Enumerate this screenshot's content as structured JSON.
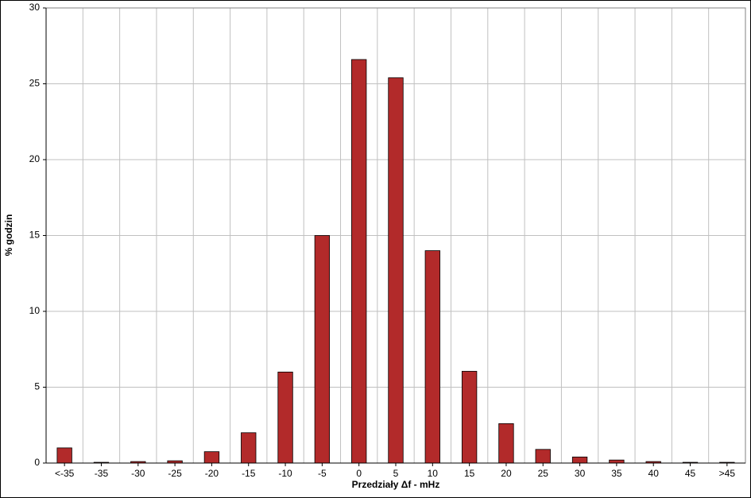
{
  "chart_data": {
    "type": "bar",
    "xlabel": "Przedziały Δf - mHz",
    "ylabel": "% godzin",
    "categories": [
      "<-35",
      "-35",
      "-30",
      "-25",
      "-20",
      "-15",
      "-10",
      "-5",
      "0",
      "5",
      "10",
      "15",
      "20",
      "25",
      "30",
      "35",
      "40",
      "45",
      ">45"
    ],
    "values": [
      1.0,
      0.05,
      0.1,
      0.15,
      0.75,
      2.0,
      6.0,
      15.0,
      26.6,
      25.4,
      14.0,
      6.05,
      2.6,
      0.9,
      0.4,
      0.2,
      0.1,
      0.05,
      0.05
    ],
    "color": "#b22a2a",
    "ylim": [
      0,
      30
    ],
    "yticks": [
      0,
      5,
      10,
      15,
      20,
      25,
      30
    ],
    "grid": true
  }
}
